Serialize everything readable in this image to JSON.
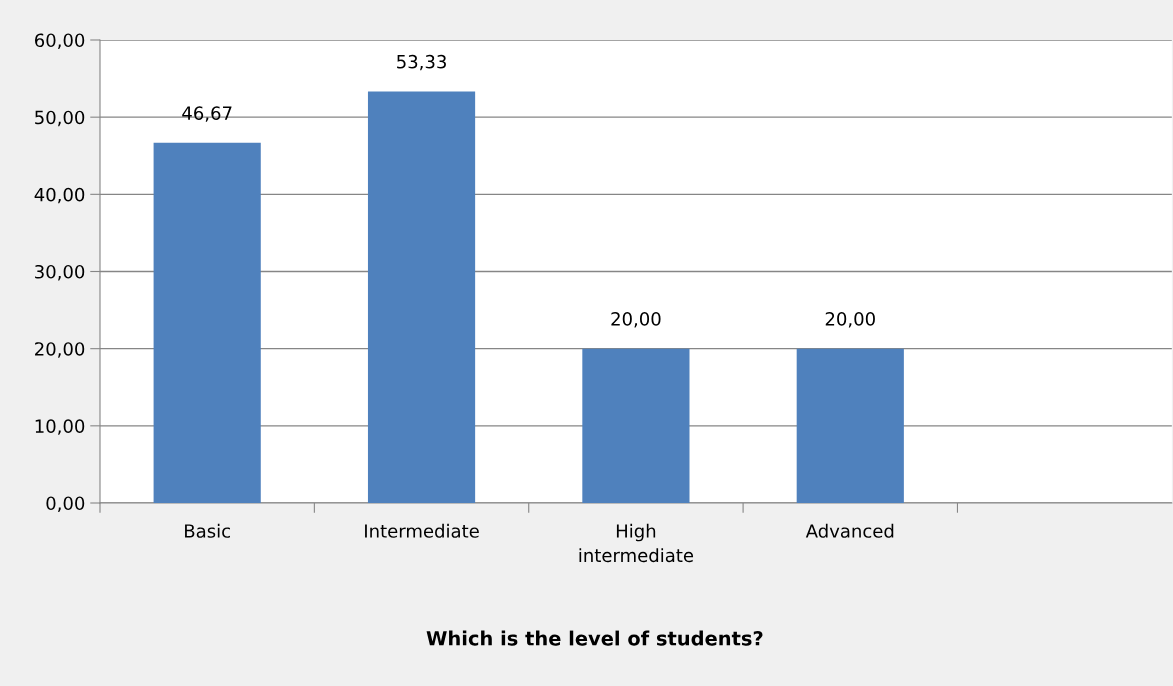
{
  "chart_data": {
    "type": "bar",
    "title": "Which is the level of students?",
    "categories": [
      "Basic",
      "Intermediate",
      "High intermediate",
      "Advanced",
      null
    ],
    "values": [
      46.67,
      53.33,
      20.0,
      20.0,
      null
    ],
    "value_labels": [
      "46,67",
      "53,33",
      "20,00",
      "20,00",
      null
    ],
    "color": "#4f81bd",
    "ylim": [
      0,
      60
    ],
    "yticks": [
      {
        "value": 0,
        "label": "0,00"
      },
      {
        "value": 10,
        "label": "10,00"
      },
      {
        "value": 20,
        "label": "20,00"
      },
      {
        "value": 30,
        "label": "30,00"
      },
      {
        "value": 40,
        "label": "40,00"
      },
      {
        "value": 50,
        "label": "50,00"
      },
      {
        "value": 60,
        "label": "60,00"
      }
    ],
    "grid": "y"
  }
}
